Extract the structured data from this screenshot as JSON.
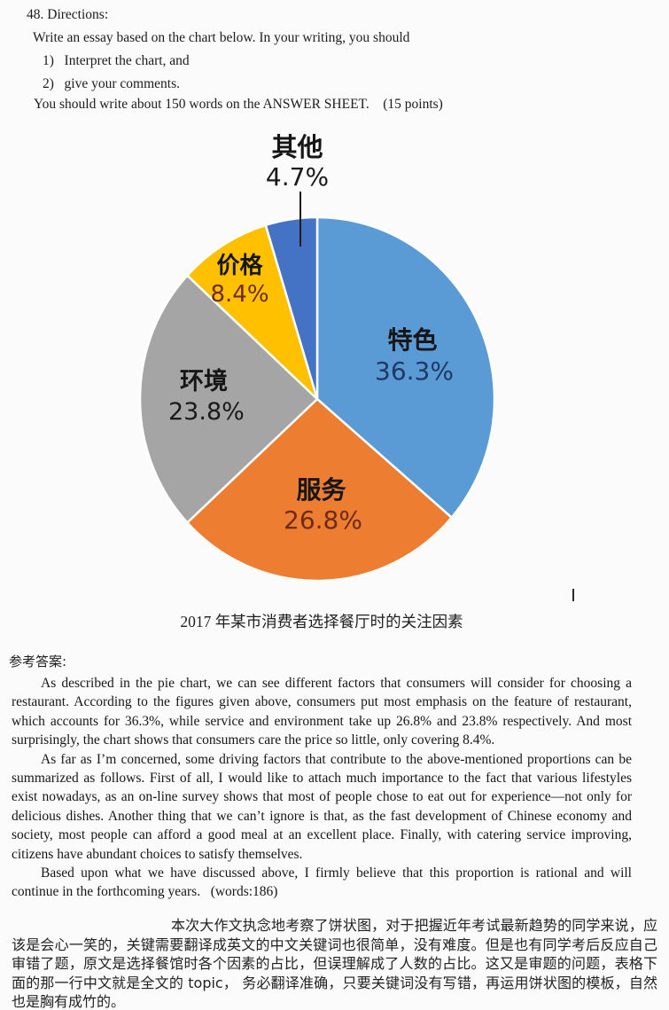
{
  "directions": {
    "number_line": "48. Directions:",
    "intro": "Write an essay based on the chart below. In your writing, you should",
    "item1": "1)   Interpret the chart, and",
    "item2": "2)   give your comments.",
    "note": "You should write about 150 words on the ANSWER SHEET.    (15 points)"
  },
  "chart_data": {
    "type": "pie",
    "title": "2017 年某市消费者选择餐厅时的关注因素",
    "unit": "%",
    "start_angle": "12 o'clock",
    "direction": "clockwise",
    "legend_position": "none (direct labels on slices)",
    "slices": [
      {
        "key": "feature",
        "label": "特色",
        "value": 36.3,
        "pct_label": "36.3%",
        "color": "#5B9BD5",
        "pct_color": "#1F3864"
      },
      {
        "key": "service",
        "label": "服务",
        "value": 26.8,
        "pct_label": "26.8%",
        "color": "#ED7D31",
        "pct_color": "#6E2B1A"
      },
      {
        "key": "environment",
        "label": "环境",
        "value": 23.8,
        "pct_label": "23.8%",
        "color": "#A5A5A5",
        "pct_color": "#1A1A1A"
      },
      {
        "key": "price",
        "label": "价格",
        "value": 8.4,
        "pct_label": "8.4%",
        "color": "#FFC000",
        "pct_color": "#6E2B1A"
      },
      {
        "key": "other",
        "label": "其他",
        "value": 4.7,
        "pct_label": "4.7%",
        "color": "#4472C4",
        "pct_color": "#1A1A1A"
      }
    ]
  },
  "answer": {
    "heading": "参考答案:",
    "p1": "As described in the pie chart, we can see different factors that consumers will consider for choosing a restaurant. According to the figures given above, consumers put most emphasis on the feature of restaurant, which accounts for 36.3%, while service and environment take up 26.8% and 23.8% respectively. And most surprisingly, the chart shows that consumers care the price so little, only covering 8.4%.",
    "p2": "As far as I’m concerned, some driving factors that contribute to the above-mentioned proportions can be summarized as follows. First of all, I would like to attach much importance to the fact that various lifestyles exist nowadays, as an on-line survey shows that most of people chose to eat out for experience—not only for delicious dishes. Another thing that we can’t ignore is that, as the fast development of Chinese economy and society, most people can afford a good meal at an excellent place. Finally, with catering service improving, citizens have abundant choices to satisfy themselves.",
    "p3": "Based upon what we have discussed above, I firmly believe that this proportion is rational and will continue in the forthcoming years.   (words:186)"
  },
  "commentary": {
    "text": "本次大作文执念地考察了饼状图，对于把握近年考试最新趋势的同学来说，应该是会心一笑的，关键需要翻译成英文的中文关键词也很简单，没有难度。但是也有同学考后反应自己审错了题，原文是选择餐馆时各个因素的占比，但误理解成了人数的占比。这又是审题的问题，表格下面的那一行中文就是全文的 topic， 务必翻译准确，只要关键词没有写错，再运用饼状图的模板，自然也是胸有成竹的。"
  }
}
